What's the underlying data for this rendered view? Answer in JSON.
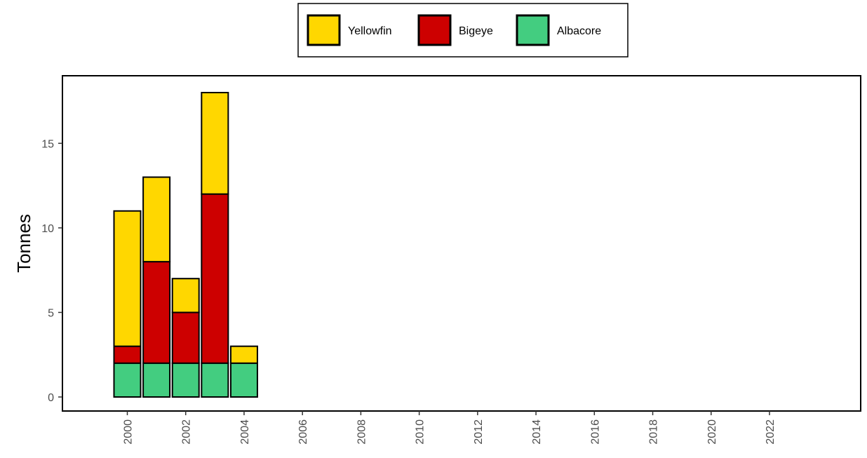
{
  "chart_data": {
    "type": "bar",
    "stacked": true,
    "title": "",
    "xlabel": "",
    "ylabel": "Tonnes",
    "categories": [
      "2000",
      "2001",
      "2002",
      "2003",
      "2004"
    ],
    "series": [
      {
        "name": "Albacore",
        "color": "#43CD80",
        "values": [
          2,
          2,
          2,
          2,
          2
        ]
      },
      {
        "name": "Bigeye",
        "color": "#CD0000",
        "values": [
          1,
          6,
          3,
          10,
          0
        ]
      },
      {
        "name": "Yellowfin",
        "color": "#FFD700",
        "values": [
          8,
          5,
          2,
          6,
          1
        ]
      }
    ],
    "legend_order": [
      "Yellowfin",
      "Bigeye",
      "Albacore"
    ],
    "legend_position": "top",
    "x_ticks": [
      "2000",
      "2002",
      "2004",
      "2006",
      "2008",
      "2010",
      "2012",
      "2014",
      "2016",
      "2018",
      "2020",
      "2022"
    ],
    "x_range": [
      1999,
      2025
    ],
    "y_ticks": [
      "0",
      "5",
      "10",
      "15"
    ],
    "ylim": [
      0,
      18
    ],
    "grid": false
  }
}
